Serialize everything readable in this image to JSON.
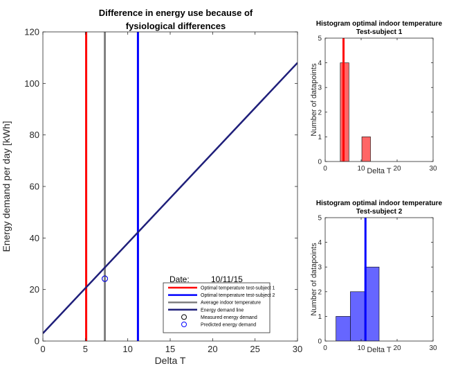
{
  "chart_data": [
    {
      "type": "line",
      "title": [
        "Difference in energy use because of",
        "fysiological differences"
      ],
      "xlabel": "Delta T",
      "ylabel": "Energy demand per day [kWh]",
      "xlim": [
        0,
        30
      ],
      "ylim": [
        0,
        120
      ],
      "xticks": [
        0,
        5,
        10,
        15,
        20,
        25,
        30
      ],
      "yticks": [
        0,
        20,
        40,
        60,
        80,
        100,
        120
      ],
      "grid": false,
      "legend_position": "bottom-right",
      "date_label": "Date:",
      "date_value": "10/11/15",
      "series": [
        {
          "name": "Optimal temperature test-subject 1",
          "kind": "vline",
          "x": 5.1,
          "color": "#ff0000"
        },
        {
          "name": "Optimal temperature test-subject 2",
          "kind": "vline",
          "x": 11.2,
          "color": "#0000ff"
        },
        {
          "name": "Average indoor temperature",
          "kind": "vline",
          "x": 7.3,
          "color": "#808080"
        },
        {
          "name": "Energy demand line",
          "kind": "line",
          "x": [
            0,
            30
          ],
          "y": [
            3,
            108
          ],
          "color": "#1f1f7a"
        },
        {
          "name": "Measured energy demand",
          "kind": "marker",
          "x": 7.3,
          "y": 24.2,
          "color": "#000000"
        },
        {
          "name": "Predicted energy demand",
          "kind": "marker",
          "x": 7.3,
          "y": 24.2,
          "color": "#0000ff"
        }
      ]
    },
    {
      "type": "bar",
      "title": [
        "Histogram optimal indoor temperature",
        "Test-subject 1"
      ],
      "xlabel": "Delta T",
      "ylabel": "Number of datapoints",
      "xlim": [
        0,
        30
      ],
      "ylim": [
        0,
        5
      ],
      "xticks": [
        0,
        10,
        20,
        30
      ],
      "yticks": [
        0,
        1,
        2,
        3,
        4,
        5
      ],
      "grid": false,
      "bin_edges": [
        0,
        3.75,
        7.5,
        11.25,
        15
      ],
      "bins": [
        {
          "start": 4.2,
          "end": 6.6,
          "count": 4
        },
        {
          "start": 10.2,
          "end": 12.6,
          "count": 1
        }
      ],
      "bar_color": "#ff6666",
      "marker_line": {
        "x": 5.1,
        "color": "#ff0000"
      }
    },
    {
      "type": "bar",
      "title": [
        "Histogram optimal indoor temperature",
        "Test-subject 2"
      ],
      "xlabel": "Delta T",
      "ylabel": "Number of datapoints",
      "xlim": [
        0,
        30
      ],
      "ylim": [
        0,
        5
      ],
      "xticks": [
        0,
        10,
        20,
        30
      ],
      "yticks": [
        0,
        1,
        2,
        3,
        4,
        5
      ],
      "grid": false,
      "bins": [
        {
          "start": 3.0,
          "end": 7.0,
          "count": 1
        },
        {
          "start": 7.0,
          "end": 11.0,
          "count": 2
        },
        {
          "start": 11.0,
          "end": 15.0,
          "count": 3
        }
      ],
      "bar_color": "#6666ff",
      "marker_line": {
        "x": 11.2,
        "color": "#0000ff"
      }
    }
  ]
}
